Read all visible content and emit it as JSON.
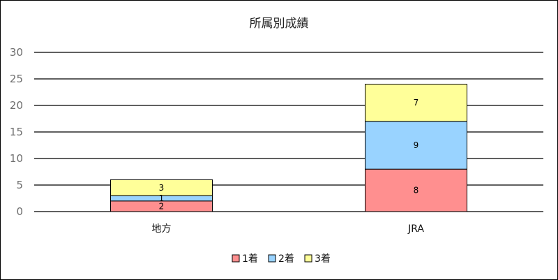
{
  "chart_data": {
    "type": "bar",
    "stacked": true,
    "title": "所属別成績",
    "categories": [
      "地方",
      "JRA"
    ],
    "series": [
      {
        "name": "1着",
        "values": [
          2,
          8
        ],
        "color": "#ff8f8f"
      },
      {
        "name": "2着",
        "values": [
          1,
          9
        ],
        "color": "#99d3ff"
      },
      {
        "name": "3着",
        "values": [
          3,
          7
        ],
        "color": "#ffff99"
      }
    ],
    "ylim": [
      0,
      30
    ],
    "yticks": [
      "0",
      "5",
      "10",
      "15",
      "20",
      "25",
      "30"
    ],
    "grid": true,
    "legend": "bottom"
  }
}
